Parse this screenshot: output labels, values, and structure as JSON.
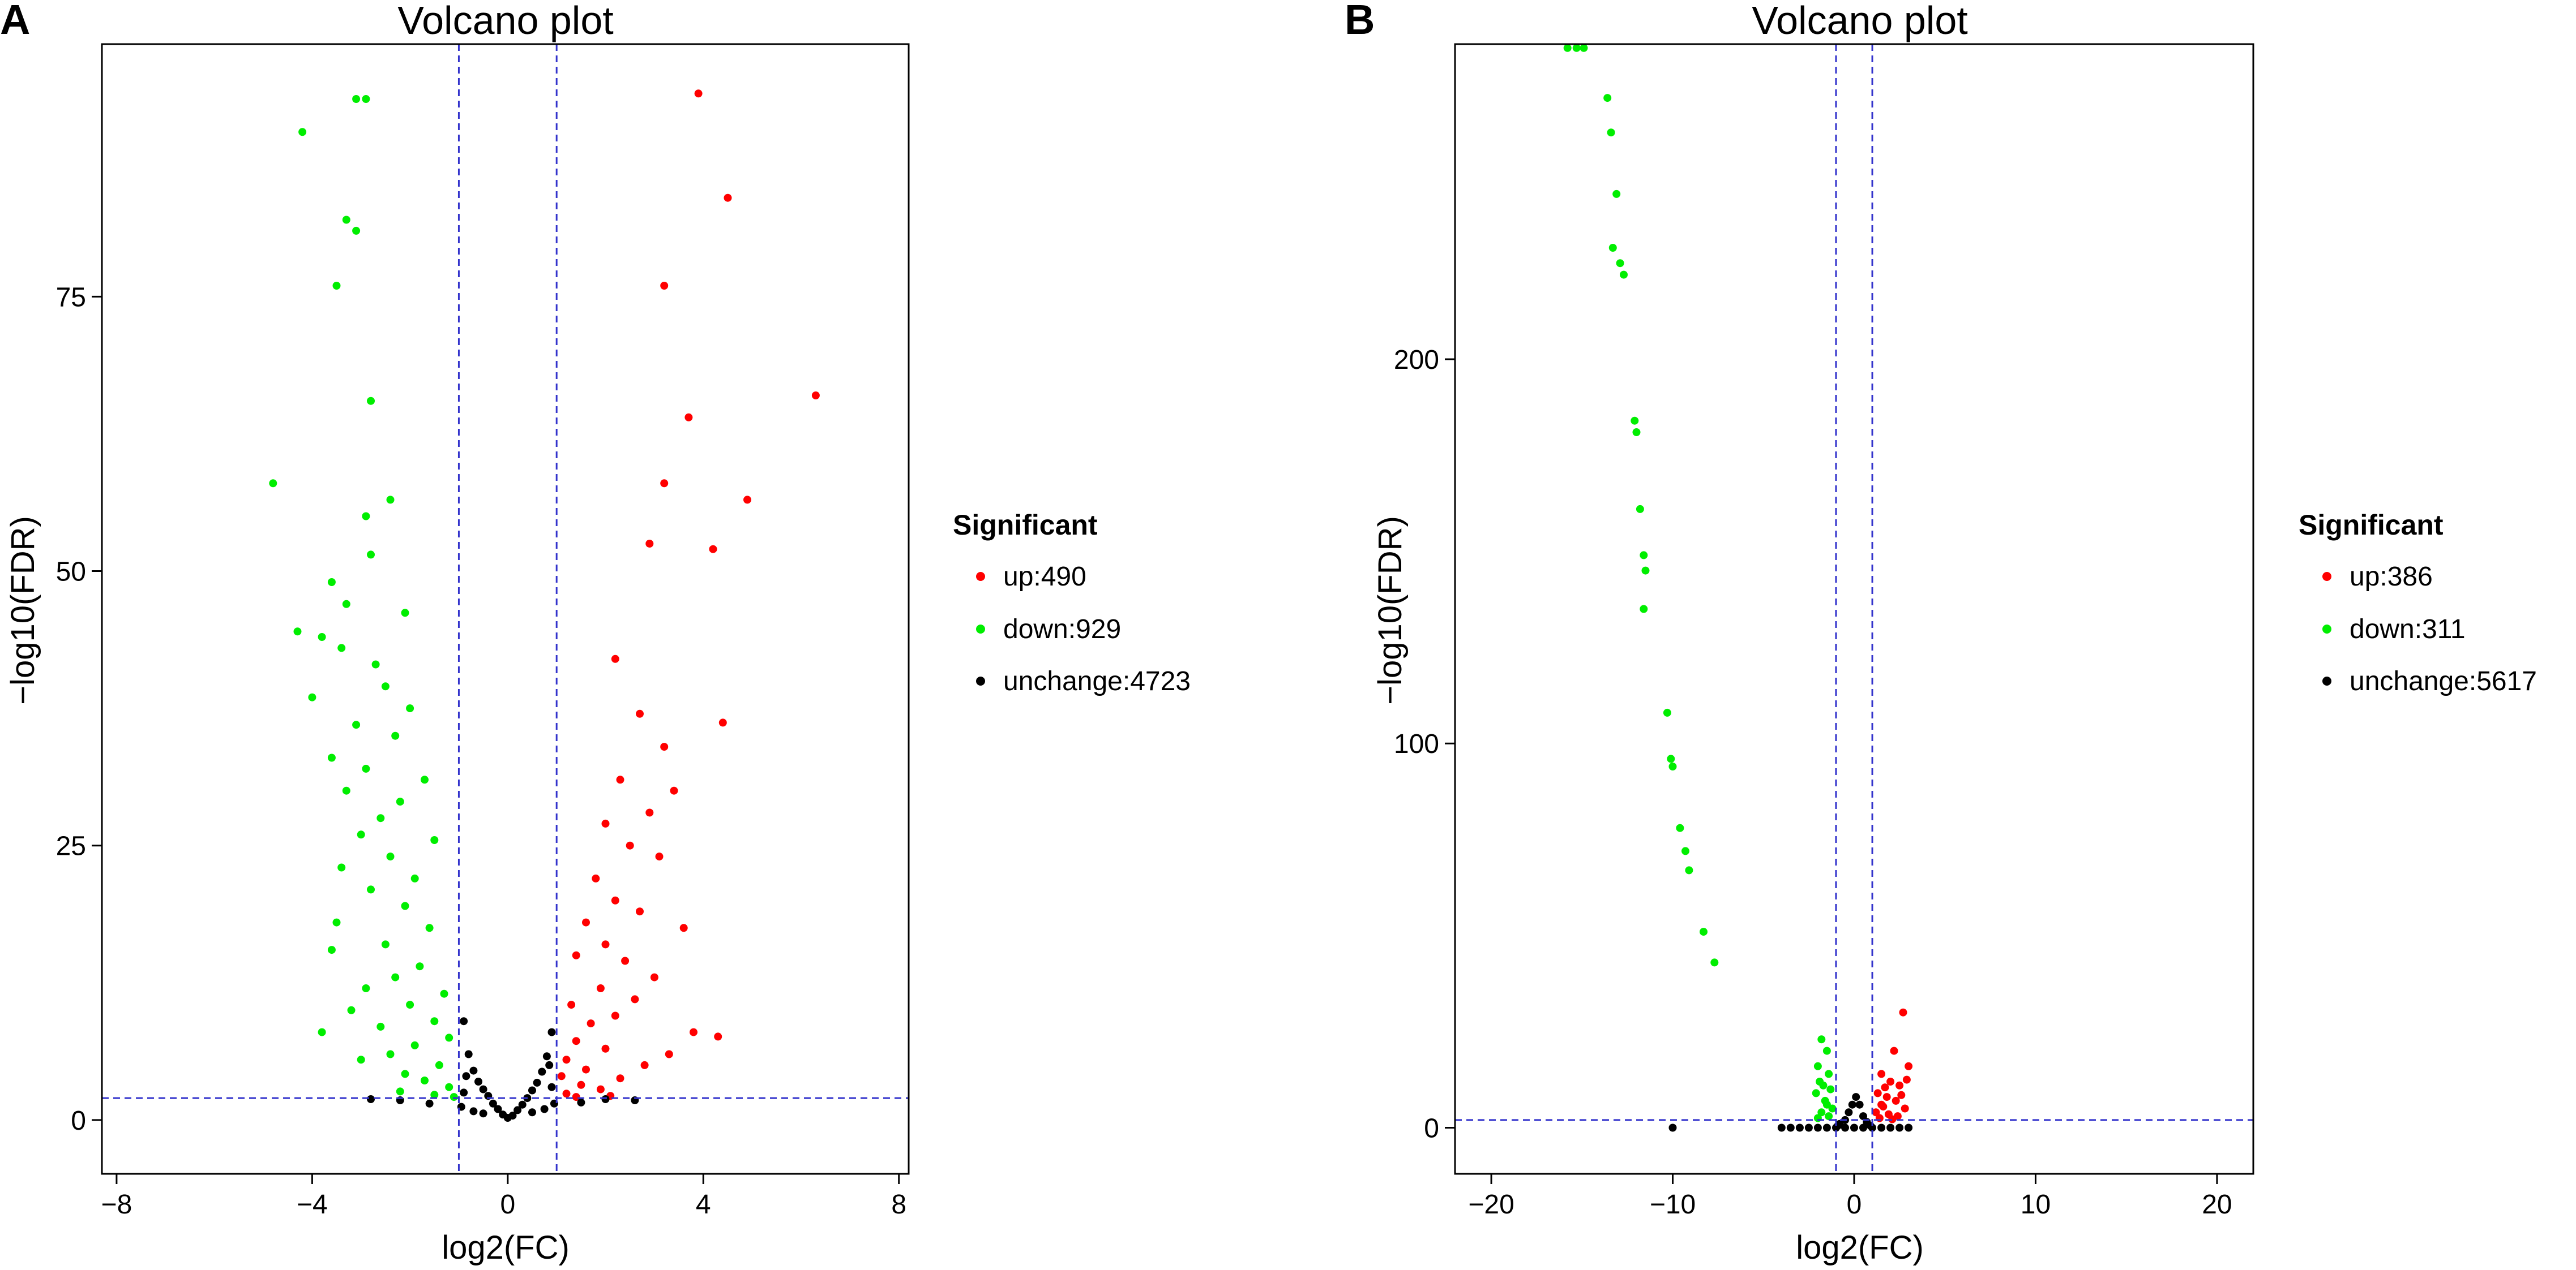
{
  "chart_data": [
    {
      "panel": "A",
      "type": "scatter",
      "title": "Volcano plot",
      "xlabel": "log2(FC)",
      "ylabel": "−log10(FDR)",
      "xlim": [
        -8.3,
        8.2
      ],
      "ylim": [
        -4.9,
        98
      ],
      "xticks": [
        -8,
        -4,
        0,
        4,
        8
      ],
      "xtick_labels": [
        "−8",
        "−4",
        "0",
        "4",
        "8"
      ],
      "yticks": [
        0,
        25,
        50,
        75
      ],
      "ytick_labels": [
        "0",
        "25",
        "50",
        "75"
      ],
      "thresholds": {
        "x": [
          -1,
          1
        ],
        "y": 2
      },
      "legend": {
        "title": "Significant",
        "position": "right",
        "entries": [
          {
            "key": "up",
            "label": "up:490",
            "color": "#ff0000"
          },
          {
            "key": "down",
            "label": "down:929",
            "color": "#00ee00"
          },
          {
            "key": "unchange",
            "label": "unchange:4723",
            "color": "#000000"
          }
        ]
      },
      "series": [
        {
          "name": "up",
          "color": "#ff0000",
          "points": [
            [
              3.9,
              93.5
            ],
            [
              4.5,
              84
            ],
            [
              3.2,
              76
            ],
            [
              6.3,
              66
            ],
            [
              3.7,
              64
            ],
            [
              3.2,
              58
            ],
            [
              4.9,
              56.5
            ],
            [
              2.9,
              52.5
            ],
            [
              4.2,
              52
            ],
            [
              2.2,
              42
            ],
            [
              2.7,
              37
            ],
            [
              4.4,
              36.2
            ],
            [
              3.2,
              34
            ],
            [
              2.3,
              31
            ],
            [
              3.4,
              30
            ],
            [
              2.9,
              28
            ],
            [
              2.0,
              27
            ],
            [
              2.5,
              25
            ],
            [
              3.1,
              24
            ],
            [
              1.8,
              22
            ],
            [
              2.2,
              20
            ],
            [
              2.7,
              19
            ],
            [
              1.6,
              18
            ],
            [
              3.6,
              17.5
            ],
            [
              2.0,
              16
            ],
            [
              2.4,
              14.5
            ],
            [
              1.4,
              15
            ],
            [
              3.0,
              13
            ],
            [
              1.9,
              12
            ],
            [
              2.6,
              11
            ],
            [
              1.3,
              10.5
            ],
            [
              2.2,
              9.5
            ],
            [
              1.7,
              8.8
            ],
            [
              3.8,
              8
            ],
            [
              4.3,
              7.6
            ],
            [
              1.4,
              7.2
            ],
            [
              2.0,
              6.5
            ],
            [
              3.3,
              6
            ],
            [
              1.2,
              5.5
            ],
            [
              2.8,
              5
            ],
            [
              1.6,
              4.6
            ],
            [
              1.1,
              4
            ],
            [
              2.3,
              3.8
            ],
            [
              1.5,
              3.2
            ],
            [
              1.9,
              2.8
            ],
            [
              1.2,
              2.4
            ],
            [
              1.4,
              2.1
            ],
            [
              2.1,
              2.2
            ]
          ]
        },
        {
          "name": "down",
          "color": "#00ee00",
          "points": [
            [
              -3.1,
              93
            ],
            [
              -2.9,
              93
            ],
            [
              -4.2,
              90
            ],
            [
              -3.3,
              82
            ],
            [
              -3.1,
              81
            ],
            [
              -3.5,
              76
            ],
            [
              -2.8,
              65.5
            ],
            [
              -4.8,
              58
            ],
            [
              -2.4,
              56.5
            ],
            [
              -2.9,
              55
            ],
            [
              -2.8,
              51.5
            ],
            [
              -3.6,
              49
            ],
            [
              -3.3,
              47
            ],
            [
              -2.1,
              46.2
            ],
            [
              -4.3,
              44.5
            ],
            [
              -3.8,
              44
            ],
            [
              -3.4,
              43
            ],
            [
              -2.7,
              41.5
            ],
            [
              -2.5,
              39.5
            ],
            [
              -4.0,
              38.5
            ],
            [
              -2.0,
              37.5
            ],
            [
              -3.1,
              36
            ],
            [
              -2.3,
              35
            ],
            [
              -3.6,
              33
            ],
            [
              -2.9,
              32
            ],
            [
              -1.7,
              31
            ],
            [
              -3.3,
              30
            ],
            [
              -2.2,
              29
            ],
            [
              -2.6,
              27.5
            ],
            [
              -3.0,
              26
            ],
            [
              -1.5,
              25.5
            ],
            [
              -2.4,
              24
            ],
            [
              -3.4,
              23
            ],
            [
              -1.9,
              22
            ],
            [
              -2.8,
              21
            ],
            [
              -2.1,
              19.5
            ],
            [
              -3.5,
              18
            ],
            [
              -1.6,
              17.5
            ],
            [
              -2.5,
              16
            ],
            [
              -3.6,
              15.5
            ],
            [
              -1.8,
              14
            ],
            [
              -2.3,
              13
            ],
            [
              -2.9,
              12
            ],
            [
              -1.3,
              11.5
            ],
            [
              -2.0,
              10.5
            ],
            [
              -3.2,
              10
            ],
            [
              -1.5,
              9
            ],
            [
              -2.6,
              8.5
            ],
            [
              -3.8,
              8
            ],
            [
              -1.2,
              7.5
            ],
            [
              -1.9,
              6.8
            ],
            [
              -2.4,
              6
            ],
            [
              -3.0,
              5.5
            ],
            [
              -1.4,
              5
            ],
            [
              -2.1,
              4.2
            ],
            [
              -1.7,
              3.6
            ],
            [
              -1.2,
              3
            ],
            [
              -2.2,
              2.6
            ],
            [
              -1.5,
              2.3
            ],
            [
              -1.1,
              2.1
            ]
          ]
        },
        {
          "name": "unchange",
          "color": "#000000",
          "points": [
            [
              -0.9,
              9
            ],
            [
              -0.8,
              6
            ],
            [
              -0.7,
              4.5
            ],
            [
              -0.6,
              3.5
            ],
            [
              -0.5,
              2.8
            ],
            [
              -0.4,
              2.2
            ],
            [
              -0.3,
              1.5
            ],
            [
              -0.2,
              1
            ],
            [
              -0.1,
              0.5
            ],
            [
              0,
              0.2
            ],
            [
              0.1,
              0.4
            ],
            [
              0.2,
              0.9
            ],
            [
              0.3,
              1.4
            ],
            [
              0.4,
              2
            ],
            [
              0.5,
              2.7
            ],
            [
              0.6,
              3.4
            ],
            [
              0.7,
              4.4
            ],
            [
              0.8,
              5.8
            ],
            [
              0.9,
              8
            ],
            [
              -0.95,
              1.2
            ],
            [
              -0.7,
              0.8
            ],
            [
              -0.5,
              0.6
            ],
            [
              0.5,
              0.7
            ],
            [
              0.75,
              1
            ],
            [
              0.95,
              1.5
            ],
            [
              -1.6,
              1.5
            ],
            [
              -2.2,
              1.8
            ],
            [
              -2.8,
              1.9
            ],
            [
              1.5,
              1.6
            ],
            [
              2.0,
              1.9
            ],
            [
              2.6,
              1.8
            ],
            [
              -0.9,
              2.5
            ],
            [
              0.9,
              3
            ],
            [
              -0.85,
              4
            ],
            [
              0.85,
              5
            ]
          ]
        }
      ]
    },
    {
      "panel": "B",
      "type": "scatter",
      "title": "Volcano plot",
      "xlabel": "log2(FC)",
      "ylabel": "−log10(FDR)",
      "xlim": [
        -22,
        22
      ],
      "ylim": [
        -12,
        282
      ],
      "xticks": [
        -20,
        -10,
        0,
        10,
        20
      ],
      "xtick_labels": [
        "−20",
        "−10",
        "0",
        "10",
        "20"
      ],
      "yticks": [
        0,
        100,
        200
      ],
      "ytick_labels": [
        "0",
        "100",
        "200"
      ],
      "thresholds": {
        "x": [
          -1,
          1
        ],
        "y": 2
      },
      "legend": {
        "title": "Significant",
        "position": "right",
        "entries": [
          {
            "key": "up",
            "label": "up:386",
            "color": "#ff0000"
          },
          {
            "key": "down",
            "label": "down:311",
            "color": "#00ee00"
          },
          {
            "key": "unchange",
            "label": "unchange:5617",
            "color": "#000000"
          }
        ]
      },
      "series": [
        {
          "name": "up",
          "color": "#ff0000",
          "points": [
            [
              2.7,
              30
            ],
            [
              2.2,
              20
            ],
            [
              3.0,
              16
            ],
            [
              1.5,
              14
            ],
            [
              2.0,
              12
            ],
            [
              2.5,
              11
            ],
            [
              1.3,
              9
            ],
            [
              1.8,
              8
            ],
            [
              2.3,
              7
            ],
            [
              1.5,
              6
            ],
            [
              2.8,
              5
            ],
            [
              1.2,
              4
            ],
            [
              1.9,
              3.5
            ],
            [
              2.4,
              3
            ],
            [
              1.4,
              2.5
            ],
            [
              2.1,
              2.2
            ],
            [
              1.6,
              5.5
            ],
            [
              2.6,
              8.5
            ],
            [
              1.7,
              10.5
            ],
            [
              2.9,
              12.5
            ]
          ]
        },
        {
          "name": "down",
          "color": "#00ee00",
          "points": [
            [
              -15.8,
              281
            ],
            [
              -15.3,
              281
            ],
            [
              -14.9,
              281
            ],
            [
              -13.6,
              268
            ],
            [
              -13.4,
              259
            ],
            [
              -13.1,
              243
            ],
            [
              -13.3,
              229
            ],
            [
              -12.9,
              225
            ],
            [
              -12.7,
              222
            ],
            [
              -12.1,
              184
            ],
            [
              -12.0,
              181
            ],
            [
              -11.8,
              161
            ],
            [
              -11.6,
              149
            ],
            [
              -11.5,
              145
            ],
            [
              -11.6,
              135
            ],
            [
              -10.3,
              108
            ],
            [
              -10.1,
              96
            ],
            [
              -10.0,
              94
            ],
            [
              -9.6,
              78
            ],
            [
              -9.3,
              72
            ],
            [
              -9.1,
              67
            ],
            [
              -8.3,
              51
            ],
            [
              -7.7,
              43
            ],
            [
              -1.8,
              23
            ],
            [
              -1.5,
              20
            ],
            [
              -2.0,
              16
            ],
            [
              -1.4,
              14
            ],
            [
              -1.9,
              12
            ],
            [
              -1.3,
              10
            ],
            [
              -2.1,
              9
            ],
            [
              -1.6,
              7
            ],
            [
              -1.2,
              5
            ],
            [
              -1.8,
              4
            ],
            [
              -1.4,
              3
            ],
            [
              -2.0,
              2.5
            ],
            [
              -1.5,
              6
            ],
            [
              -1.7,
              11
            ]
          ]
        },
        {
          "name": "unchange",
          "color": "#000000",
          "points": [
            [
              -10.0,
              0
            ],
            [
              -4.0,
              0
            ],
            [
              -3.5,
              0
            ],
            [
              -3.0,
              0
            ],
            [
              -2.5,
              0
            ],
            [
              -2.0,
              0
            ],
            [
              -1.5,
              0
            ],
            [
              -1.0,
              0
            ],
            [
              -0.5,
              0
            ],
            [
              0,
              0
            ],
            [
              0.5,
              0
            ],
            [
              1.0,
              0
            ],
            [
              1.5,
              0
            ],
            [
              2.0,
              0
            ],
            [
              2.5,
              0
            ],
            [
              3.0,
              0
            ],
            [
              -0.8,
              1
            ],
            [
              -0.5,
              2
            ],
            [
              -0.3,
              4
            ],
            [
              -0.1,
              6
            ],
            [
              0.1,
              8
            ],
            [
              0.3,
              6
            ],
            [
              0.5,
              3
            ],
            [
              0.7,
              1.5
            ],
            [
              -0.9,
              0.5
            ],
            [
              0.9,
              0.5
            ]
          ]
        }
      ]
    }
  ]
}
